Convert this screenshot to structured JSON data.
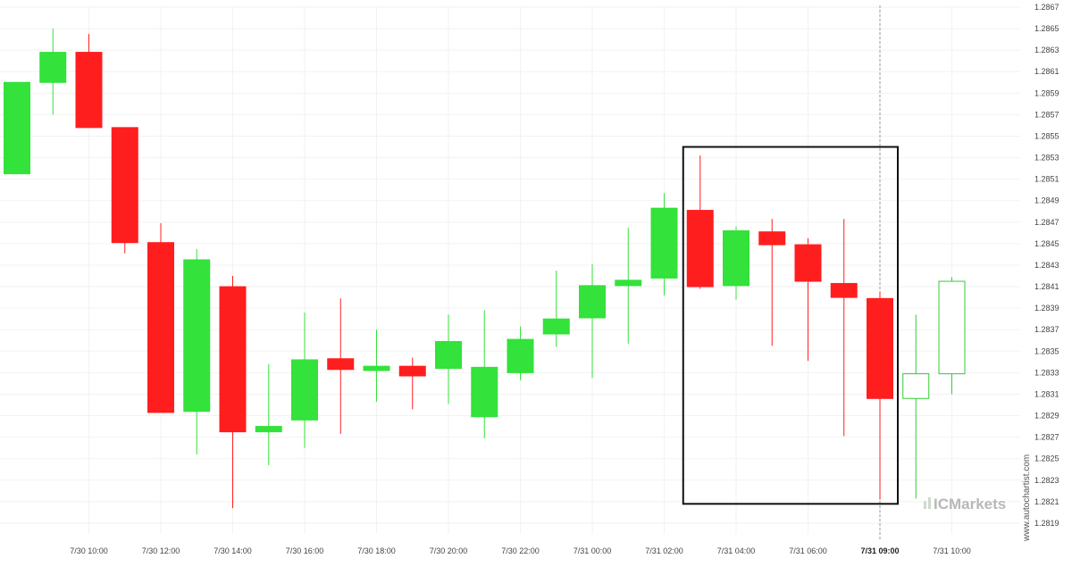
{
  "watermark": "www.autochartist.com",
  "brand": {
    "prefix": "IC",
    "name": "Markets",
    "color": "#b8b8b8",
    "accent": "#cfd8cf"
  },
  "colors": {
    "bull": "#33e23a",
    "bear": "#ff1e1e",
    "outline_bull": "#33cc33",
    "grid": "#f2f2f2",
    "box": "#111111",
    "cursor": "#999999"
  },
  "chart_data": {
    "type": "candlestick",
    "y_axis": {
      "position": "right",
      "range": [
        1.2818,
        1.2867
      ],
      "ticks": [
        "1.2819",
        "1.2821",
        "1.2823",
        "1.2825",
        "1.2827",
        "1.2829",
        "1.2831",
        "1.2833",
        "1.2835",
        "1.2837",
        "1.2839",
        "1.2841",
        "1.2843",
        "1.2845",
        "1.2847",
        "1.2849",
        "1.2851",
        "1.2853",
        "1.2855",
        "1.2857",
        "1.2859",
        "1.2861",
        "1.2863",
        "1.2865",
        "1.2867"
      ]
    },
    "x_axis": {
      "ticks": [
        {
          "label": "7/30 10:00",
          "index": 2
        },
        {
          "label": "7/30 12:00",
          "index": 4
        },
        {
          "label": "7/30 14:00",
          "index": 6
        },
        {
          "label": "7/30 16:00",
          "index": 8
        },
        {
          "label": "7/30 18:00",
          "index": 10
        },
        {
          "label": "7/30 20:00",
          "index": 12
        },
        {
          "label": "7/30 22:00",
          "index": 14
        },
        {
          "label": "7/31 00:00",
          "index": 16
        },
        {
          "label": "7/31 02:00",
          "index": 18
        },
        {
          "label": "7/31 04:00",
          "index": 20
        },
        {
          "label": "7/31 06:00",
          "index": 22
        },
        {
          "label": "7/31 09:00",
          "index": 24,
          "highlight": true
        },
        {
          "label": "7/31 10:00",
          "index": 26
        }
      ]
    },
    "candles": [
      {
        "o": 1.28515,
        "h": 1.286,
        "l": 1.28515,
        "c": 1.286,
        "style": "bull"
      },
      {
        "o": 1.286,
        "h": 1.2865,
        "l": 1.2857,
        "c": 1.28628,
        "style": "bull"
      },
      {
        "o": 1.28628,
        "h": 1.28645,
        "l": 1.28558,
        "c": 1.28558,
        "style": "bear"
      },
      {
        "o": 1.28558,
        "h": 1.28558,
        "l": 1.28441,
        "c": 1.28451,
        "style": "bear"
      },
      {
        "o": 1.28451,
        "h": 1.28469,
        "l": 1.28293,
        "c": 1.28293,
        "style": "bear"
      },
      {
        "o": 1.28294,
        "h": 1.28445,
        "l": 1.28254,
        "c": 1.28435,
        "style": "bull"
      },
      {
        "o": 1.2841,
        "h": 1.2842,
        "l": 1.28204,
        "c": 1.28275,
        "style": "bear"
      },
      {
        "o": 1.28275,
        "h": 1.28338,
        "l": 1.28244,
        "c": 1.2828,
        "style": "bull"
      },
      {
        "o": 1.28286,
        "h": 1.28386,
        "l": 1.2826,
        "c": 1.28342,
        "style": "bull"
      },
      {
        "o": 1.28343,
        "h": 1.28399,
        "l": 1.28273,
        "c": 1.28333,
        "style": "bear"
      },
      {
        "o": 1.28332,
        "h": 1.2837,
        "l": 1.28303,
        "c": 1.28336,
        "style": "bull"
      },
      {
        "o": 1.28336,
        "h": 1.28344,
        "l": 1.28296,
        "c": 1.28327,
        "style": "bear"
      },
      {
        "o": 1.28334,
        "h": 1.28384,
        "l": 1.28301,
        "c": 1.28359,
        "style": "bull"
      },
      {
        "o": 1.28289,
        "h": 1.28388,
        "l": 1.28269,
        "c": 1.28335,
        "style": "bull"
      },
      {
        "o": 1.2833,
        "h": 1.28373,
        "l": 1.28323,
        "c": 1.28361,
        "style": "bull"
      },
      {
        "o": 1.28366,
        "h": 1.28425,
        "l": 1.28354,
        "c": 1.2838,
        "style": "bull"
      },
      {
        "o": 1.28381,
        "h": 1.28431,
        "l": 1.28325,
        "c": 1.28411,
        "style": "bull"
      },
      {
        "o": 1.28411,
        "h": 1.28465,
        "l": 1.28357,
        "c": 1.28416,
        "style": "bull"
      },
      {
        "o": 1.28418,
        "h": 1.28497,
        "l": 1.28402,
        "c": 1.28483,
        "style": "bull"
      },
      {
        "o": 1.28481,
        "h": 1.28532,
        "l": 1.28408,
        "c": 1.2841,
        "style": "bear"
      },
      {
        "o": 1.28411,
        "h": 1.28466,
        "l": 1.28398,
        "c": 1.28462,
        "style": "bull"
      },
      {
        "o": 1.28461,
        "h": 1.28473,
        "l": 1.28355,
        "c": 1.28449,
        "style": "bear"
      },
      {
        "o": 1.28449,
        "h": 1.28455,
        "l": 1.28341,
        "c": 1.28415,
        "style": "bear"
      },
      {
        "o": 1.28413,
        "h": 1.28473,
        "l": 1.28271,
        "c": 1.284,
        "style": "bear"
      },
      {
        "o": 1.28399,
        "h": 1.28405,
        "l": 1.28212,
        "c": 1.28306,
        "style": "bear"
      },
      {
        "o": 1.28306,
        "h": 1.28384,
        "l": 1.28213,
        "c": 1.28329,
        "style": "hollow"
      },
      {
        "o": 1.28329,
        "h": 1.28419,
        "l": 1.2831,
        "c": 1.28415,
        "style": "hollow"
      }
    ],
    "pattern_box": {
      "from_index": 19,
      "to_index": 24,
      "high": 1.2854,
      "low": 1.28208
    },
    "cursor_line_index": 24
  }
}
